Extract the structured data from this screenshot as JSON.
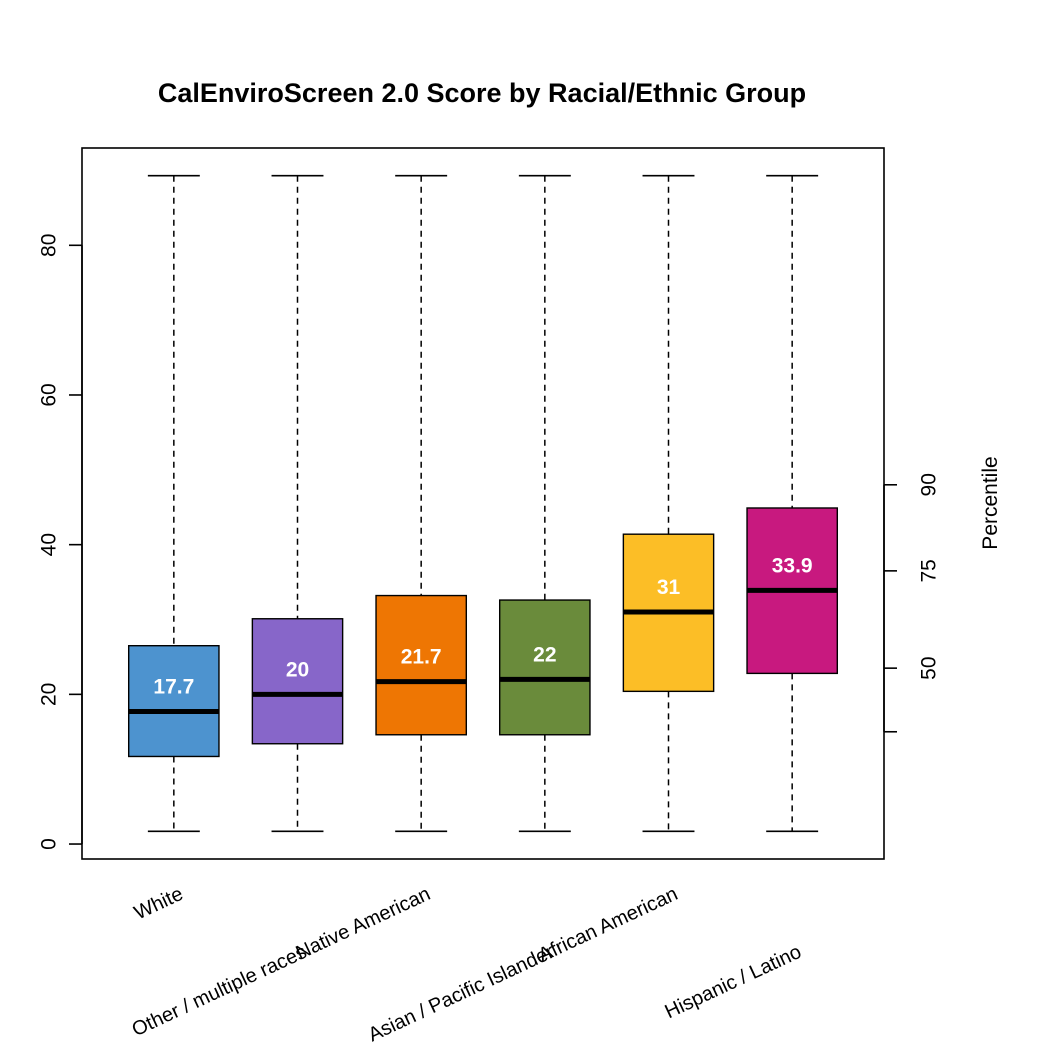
{
  "chart_data": {
    "type": "boxplot",
    "title": "CalEnviroScreen 2.0 Score by Racial/Ethnic Group",
    "xlabel": "",
    "ylabel": "",
    "ylim": [
      -2,
      93
    ],
    "y_ticks": [
      0,
      20,
      40,
      60,
      80
    ],
    "y_tick_labels": [
      "0",
      "20",
      "40",
      "60",
      "80"
    ],
    "right_axis": {
      "title": "Percentile",
      "ticks": [
        {
          "score": 15.0,
          "label": ""
        },
        {
          "score": 23.5,
          "label": "50"
        },
        {
          "score": 36.5,
          "label": "75"
        },
        {
          "score": 48.0,
          "label": "90"
        }
      ]
    },
    "categories": [
      "White",
      "Other / multiple races",
      "Native American",
      "Asian / Pacific Islander",
      "African American",
      "Hispanic / Latino"
    ],
    "series": [
      {
        "category": "White",
        "min": 1.7,
        "q1": 11.7,
        "median": 17.7,
        "q3": 26.5,
        "max": 89.3,
        "median_label": "17.7",
        "color": "#4D93CF"
      },
      {
        "category": "Other / multiple races",
        "min": 1.7,
        "q1": 13.4,
        "median": 20.0,
        "q3": 30.1,
        "max": 89.3,
        "median_label": "20",
        "color": "#8766C9"
      },
      {
        "category": "Native American",
        "min": 1.7,
        "q1": 14.6,
        "median": 21.7,
        "q3": 33.2,
        "max": 89.3,
        "median_label": "21.7",
        "color": "#EE7603"
      },
      {
        "category": "Asian / Pacific Islander",
        "min": 1.7,
        "q1": 14.6,
        "median": 22.0,
        "q3": 32.6,
        "max": 89.3,
        "median_label": "22",
        "color": "#6A8B3B"
      },
      {
        "category": "African American",
        "min": 1.7,
        "q1": 20.4,
        "median": 31.0,
        "q3": 41.4,
        "max": 89.3,
        "median_label": "31",
        "color": "#FCBE26"
      },
      {
        "category": "Hispanic / Latino",
        "min": 1.7,
        "q1": 22.8,
        "median": 33.9,
        "q3": 44.9,
        "max": 89.3,
        "median_label": "33.9",
        "color": "#C8197F"
      }
    ],
    "grid": false,
    "legend": "none"
  }
}
